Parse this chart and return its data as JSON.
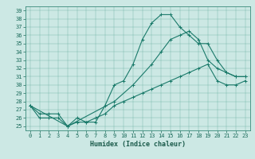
{
  "xlabel": "Humidex (Indice chaleur)",
  "xlim": [
    -0.5,
    23.5
  ],
  "ylim": [
    24.5,
    39.5
  ],
  "yticks": [
    25,
    26,
    27,
    28,
    29,
    30,
    31,
    32,
    33,
    34,
    35,
    36,
    37,
    38,
    39
  ],
  "xticks": [
    0,
    1,
    2,
    3,
    4,
    5,
    6,
    7,
    8,
    9,
    10,
    11,
    12,
    13,
    14,
    15,
    16,
    17,
    18,
    19,
    20,
    21,
    22,
    23
  ],
  "line_color": "#1a7a6a",
  "bg_color": "#cce8e4",
  "line1_x": [
    0,
    1,
    2,
    3,
    4,
    5,
    6,
    7,
    8,
    9,
    10,
    11,
    12,
    13,
    14,
    15,
    16,
    17,
    18,
    19,
    20,
    21,
    22,
    23
  ],
  "line1_y": [
    27.5,
    26.5,
    26.5,
    26.5,
    25.0,
    26.0,
    25.5,
    25.5,
    27.5,
    30.0,
    30.5,
    32.5,
    35.5,
    37.5,
    38.5,
    38.5,
    37.0,
    36.0,
    35.0,
    35.0,
    33.0,
    31.5,
    31.0,
    31.0
  ],
  "line2_x": [
    0,
    4,
    9,
    11,
    13,
    14,
    15,
    16,
    17,
    18,
    19,
    20,
    21,
    22,
    23
  ],
  "line2_y": [
    27.5,
    25.0,
    28.0,
    30.0,
    32.5,
    34.0,
    35.5,
    36.0,
    36.5,
    35.5,
    33.0,
    32.0,
    31.5,
    31.0,
    31.0
  ],
  "line3_x": [
    0,
    1,
    2,
    3,
    4,
    5,
    6,
    7,
    8,
    9,
    10,
    11,
    12,
    13,
    14,
    15,
    16,
    17,
    18,
    19,
    20,
    21,
    22,
    23
  ],
  "line3_y": [
    27.5,
    26.0,
    26.0,
    26.0,
    25.0,
    25.5,
    25.5,
    26.0,
    26.5,
    27.5,
    28.0,
    28.5,
    29.0,
    29.5,
    30.0,
    30.5,
    31.0,
    31.5,
    32.0,
    32.5,
    30.5,
    30.0,
    30.0,
    30.5
  ],
  "marker": "+",
  "markersize": 3,
  "linewidth": 0.8,
  "tick_fontsize": 5,
  "xlabel_fontsize": 6
}
